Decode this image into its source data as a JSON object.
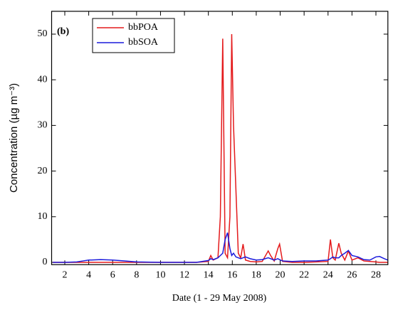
{
  "chart_data": {
    "type": "line",
    "panel_label": "(b)",
    "x_label": "Date (1 - 29 May 2008)",
    "y_label": "Concentration (µg m⁻³)",
    "x": [
      1,
      2,
      3,
      3.5,
      4,
      5,
      6,
      7,
      8,
      10,
      12,
      13,
      14,
      14.2,
      14.4,
      14.8,
      15.0,
      15.2,
      15.4,
      15.6,
      15.8,
      15.95,
      16.1,
      16.3,
      16.5,
      16.7,
      16.9,
      17.1,
      17.5,
      18,
      18.5,
      19,
      19.2,
      19.5,
      19.8,
      19.95,
      20.2,
      21,
      22,
      23,
      24,
      24.2,
      24.4,
      24.6,
      24.9,
      25.1,
      25.4,
      25.7,
      26,
      26.5,
      27,
      27.5,
      28,
      28.3,
      28.7,
      29
    ],
    "series": [
      {
        "name": "bbPOA",
        "color": "#e41a1c",
        "values": [
          0,
          0,
          0,
          0,
          0,
          0,
          0,
          0,
          0,
          0,
          0,
          0,
          0.2,
          1.5,
          0.5,
          1,
          10,
          49,
          2,
          1,
          10,
          50,
          30,
          16,
          2,
          1,
          4,
          0.5,
          0.2,
          0.1,
          0.2,
          2.5,
          1.5,
          0.3,
          3,
          4,
          0.2,
          0,
          0,
          0.1,
          0.2,
          5,
          1,
          0.5,
          4.2,
          2,
          0.5,
          2.5,
          0.5,
          1,
          0.3,
          0.2,
          0.1,
          0,
          0,
          0
        ]
      },
      {
        "name": "bbSOA",
        "color": "#1a1adc",
        "values": [
          0,
          0,
          0.1,
          0.3,
          0.5,
          0.6,
          0.5,
          0.3,
          0.1,
          0,
          0,
          0,
          0.4,
          0.8,
          0.6,
          1,
          1.5,
          2,
          5,
          6.5,
          3,
          1.5,
          2,
          1.2,
          1,
          0.8,
          1,
          1.2,
          0.8,
          0.5,
          0.6,
          1,
          0.8,
          0.5,
          0.8,
          0.6,
          0.3,
          0.2,
          0.3,
          0.3,
          0.5,
          0.8,
          1.2,
          1,
          1,
          1.5,
          2,
          2.6,
          1.5,
          1.2,
          0.6,
          0.5,
          1.2,
          1.3,
          0.8,
          0.5
        ]
      }
    ],
    "xlim": [
      0.9,
      29
    ],
    "ylim": [
      -0.5,
      55
    ],
    "xticks": [
      2,
      4,
      6,
      8,
      10,
      12,
      14,
      16,
      18,
      20,
      22,
      24,
      26,
      28
    ],
    "yticks": [
      0,
      10,
      20,
      30,
      40,
      50
    ],
    "legend": "upper-left"
  }
}
